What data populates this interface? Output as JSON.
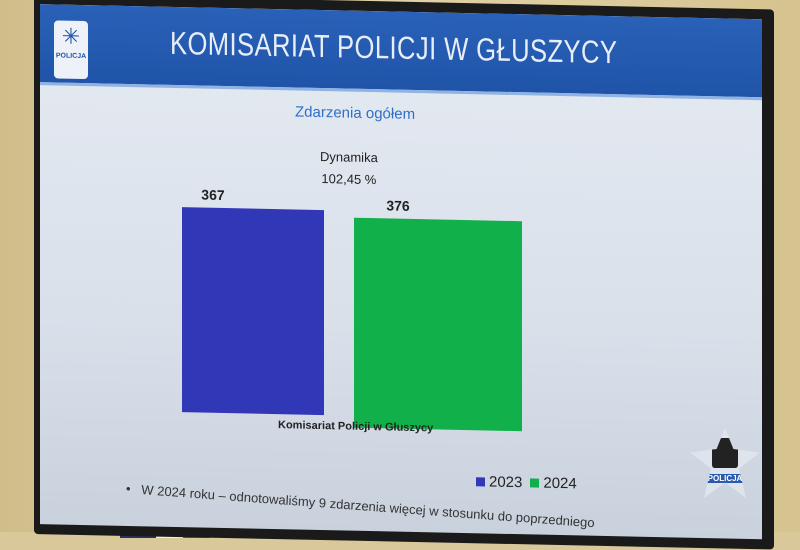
{
  "header": {
    "title": "KOMISARIAT POLICJI W GŁUSZYCY",
    "logo_text": "POLICJA"
  },
  "badge_text": "POLICJA",
  "chart_data": {
    "type": "bar",
    "title": "Zdarzenia ogółem",
    "annotation_label": "Dynamika",
    "annotation_value": "102,45 %",
    "xlabel": "Komisariat Policji  w Głuszycy",
    "categories": [
      "Komisariat Policji  w Głuszycy"
    ],
    "series": [
      {
        "name": "2023",
        "values": [
          367
        ],
        "color": "#3038b8"
      },
      {
        "name": "2024",
        "values": [
          376
        ],
        "color": "#12b04a"
      }
    ],
    "ylim": [
      0,
      376
    ],
    "legend": "bottom-right",
    "grid": false
  },
  "note": "W 2024 roku – odnotowaliśmy 9   zdarzenia więcej  w stosunku do poprzedniego"
}
